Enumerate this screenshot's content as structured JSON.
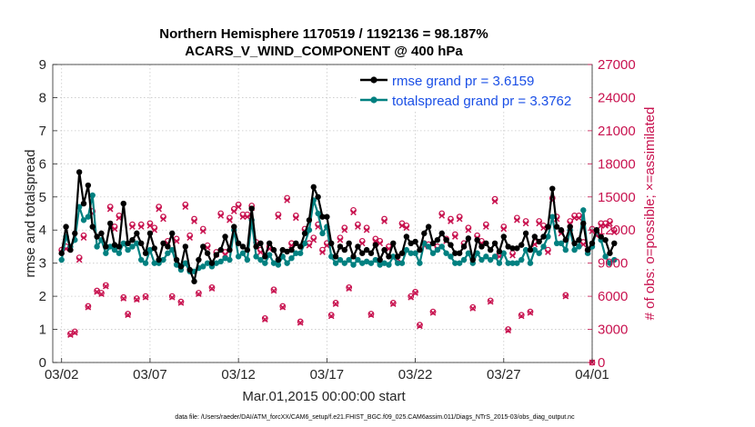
{
  "chart_data": {
    "type": "line",
    "title": "Northern Hemisphere 1170519 / 1192136 = 98.187%",
    "subtitle": "ACARS_V_WIND_COMPONENT @ 400 hPa",
    "xlabel": "Mar.01,2015 00:00:00 start",
    "ylabel": "rmse and totalspread",
    "y2label": "# of obs: o=possible; ×=assimilated",
    "footnote": "data file: /Users/raeder/DAI/ATM_forcXX/CAM6_setup/f.e21.FHIST_BGC.f09_025.CAM6assim.011/Diags_NTrS_2015-03/obs_diag_output.nc",
    "xlim": [
      0.5,
      31
    ],
    "ylim": [
      0,
      9
    ],
    "y2lim": [
      0,
      27000
    ],
    "xticks": [
      1,
      6,
      11,
      16,
      21,
      26,
      31
    ],
    "xtick_labels": [
      "03/02",
      "03/07",
      "03/12",
      "03/17",
      "03/22",
      "03/27",
      "04/01"
    ],
    "yticks": [
      0,
      1,
      2,
      3,
      4,
      5,
      6,
      7,
      8,
      9
    ],
    "ytick_labels": [
      "0",
      "1",
      "2",
      "3",
      "4",
      "5",
      "6",
      "7",
      "8",
      "9"
    ],
    "y2ticks": [
      0,
      3000,
      6000,
      9000,
      12000,
      15000,
      18000,
      21000,
      24000,
      27000
    ],
    "y2tick_labels": [
      "0",
      "3000",
      "6000",
      "9000",
      "12000",
      "15000",
      "18000",
      "21000",
      "24000",
      "27000"
    ],
    "grid": true,
    "legend_position": "top-right",
    "colors": {
      "rmse": "#000000",
      "spread": "#008080",
      "obs": "#c8124f"
    },
    "series": [
      {
        "name": "rmse grand pr = 3.6159",
        "color": "#000000",
        "values": [
          3.3,
          4.1,
          3.4,
          3.9,
          5.75,
          4.8,
          5.35,
          4.1,
          3.8,
          3.9,
          3.5,
          4.2,
          3.55,
          3.5,
          4.8,
          3.6,
          3.7,
          3.9,
          3.6,
          3.3,
          3.9,
          3.45,
          3.1,
          3.6,
          3.5,
          3.9,
          3.1,
          2.9,
          3.5,
          2.8,
          2.45,
          3.1,
          3.5,
          3.3,
          3.0,
          3.25,
          3.4,
          3.8,
          3.4,
          4.1,
          3.6,
          3.5,
          3.4,
          4.65,
          3.5,
          3.6,
          3.2,
          3.6,
          3.4,
          3.1,
          3.4,
          3.35,
          3.4,
          3.6,
          3.5,
          3.9,
          4.3,
          5.3,
          5.0,
          4.4,
          4.4,
          3.6,
          3.2,
          3.5,
          3.4,
          3.6,
          3.2,
          3.5,
          3.3,
          3.4,
          3.3,
          3.55,
          3.1,
          3.4,
          3.2,
          3.6,
          3.2,
          3.3,
          3.8,
          3.6,
          3.65,
          3.4,
          3.9,
          4.1,
          3.6,
          3.7,
          3.9,
          3.7,
          3.55,
          3.3,
          3.3,
          3.5,
          3.75,
          3.1,
          3.7,
          3.5,
          3.6,
          3.4,
          3.6,
          3.35,
          3.8,
          3.5,
          3.45,
          3.45,
          3.55,
          3.9,
          3.4,
          3.8,
          3.65,
          3.8,
          4.1,
          5.25,
          4.1,
          4.0,
          3.7,
          4.1,
          3.6,
          3.7,
          4.2,
          3.4,
          3.6,
          4.0,
          3.8,
          3.7,
          3.3,
          3.6
        ]
      },
      {
        "name": "totalspread grand pr = 3.3762",
        "color": "#008080",
        "values": [
          3.1,
          3.8,
          3.5,
          3.7,
          4.7,
          4.3,
          4.4,
          5.05,
          3.5,
          3.7,
          3.3,
          3.5,
          3.4,
          3.3,
          3.6,
          3.4,
          3.5,
          3.6,
          3.1,
          3.0,
          3.4,
          3.0,
          3.0,
          3.1,
          3.3,
          3.4,
          2.95,
          2.8,
          3.0,
          2.75,
          2.75,
          2.85,
          2.9,
          3.0,
          2.9,
          3.0,
          3.05,
          3.15,
          3.1,
          4.0,
          3.2,
          3.3,
          3.1,
          4.3,
          3.2,
          3.1,
          3.0,
          3.25,
          3.0,
          2.95,
          3.2,
          3.0,
          3.15,
          3.3,
          3.3,
          3.6,
          4.0,
          4.9,
          4.5,
          3.9,
          4.1,
          3.2,
          3.0,
          3.1,
          3.0,
          3.1,
          2.95,
          3.1,
          3.0,
          3.05,
          3.0,
          3.1,
          2.95,
          3.0,
          2.95,
          3.2,
          3.0,
          3.0,
          3.4,
          3.3,
          3.3,
          3.0,
          3.6,
          3.5,
          3.3,
          3.4,
          3.5,
          3.3,
          3.2,
          3.0,
          3.0,
          3.1,
          3.3,
          3.0,
          3.3,
          3.1,
          3.2,
          3.1,
          3.2,
          3.0,
          3.3,
          3.0,
          3.0,
          3.0,
          3.1,
          3.4,
          3.0,
          3.4,
          3.3,
          3.5,
          3.8,
          4.4,
          3.6,
          3.6,
          3.4,
          4.0,
          3.4,
          3.5,
          4.6,
          3.3,
          3.5,
          4.0,
          3.7,
          3.2,
          3.0,
          3.1
        ]
      },
      {
        "name": "observations possible / assimilated",
        "color": "#c8124f",
        "possible": [
          10200,
          10500,
          2600,
          2800,
          9500,
          11500,
          5100,
          13700,
          6500,
          6300,
          7000,
          14100,
          12300,
          13300,
          5900,
          4400,
          12500,
          5800,
          12500,
          6000,
          12600,
          12200,
          14100,
          13200,
          11000,
          6000,
          11200,
          5500,
          14300,
          11500,
          13000,
          6300,
          12100,
          10600,
          6800,
          10000,
          13500,
          10000,
          13100,
          13900,
          14300,
          13400,
          13400,
          14200,
          10900,
          10200,
          4000,
          10500,
          6600,
          13400,
          5100,
          14900,
          10800,
          13300,
          3700,
          12100,
          10800,
          11300,
          12500,
          10200,
          10800,
          4300,
          5400,
          11300,
          12200,
          6800,
          13800,
          12500,
          11000,
          12200,
          4400,
          11200,
          11000,
          13000,
          10500,
          5400,
          9600,
          12600,
          12400,
          6000,
          6400,
          3400,
          10800,
          10700,
          4600,
          10500,
          13500,
          11200,
          13000,
          11600,
          13200,
          10800,
          12200,
          5000,
          11500,
          11000,
          12500,
          5600,
          14800,
          9800,
          12300,
          3000,
          9900,
          13100,
          4300,
          12800,
          4600,
          10900,
          12800,
          12400,
          10200,
          14900,
          13200,
          11900,
          6100,
          12800,
          13300,
          13300,
          10900,
          10200,
          12100,
          11700,
          12600,
          12600,
          12800,
          12000
        ],
        "assimilated": [
          10000,
          10300,
          2500,
          2700,
          9300,
          11300,
          5000,
          13500,
          6400,
          6200,
          6900,
          13900,
          12100,
          13100,
          5800,
          4300,
          12300,
          5700,
          12300,
          5900,
          12400,
          12000,
          13900,
          13000,
          10800,
          5900,
          11000,
          5400,
          14100,
          11300,
          12800,
          6200,
          11900,
          10400,
          6700,
          9800,
          13300,
          9800,
          12900,
          13700,
          14100,
          13200,
          13200,
          14000,
          10700,
          10000,
          3900,
          10300,
          6500,
          13200,
          5000,
          14700,
          10600,
          13100,
          3600,
          11900,
          10600,
          11100,
          12300,
          10000,
          10600,
          4200,
          5300,
          11100,
          12000,
          6700,
          13600,
          12300,
          10800,
          12000,
          4300,
          11000,
          10800,
          12800,
          10300,
          5300,
          9400,
          12400,
          12200,
          5900,
          6300,
          3300,
          10600,
          10500,
          4500,
          10300,
          13300,
          11000,
          12800,
          11400,
          13000,
          10600,
          12000,
          4900,
          11300,
          10800,
          12300,
          5500,
          14600,
          9600,
          12100,
          2900,
          9700,
          12900,
          4200,
          12600,
          4500,
          10700,
          12600,
          12200,
          10000,
          14700,
          13000,
          11700,
          6000,
          12600,
          13100,
          13100,
          10700,
          10000,
          11900,
          11500,
          12400,
          12400,
          12600,
          11800
        ]
      }
    ]
  }
}
